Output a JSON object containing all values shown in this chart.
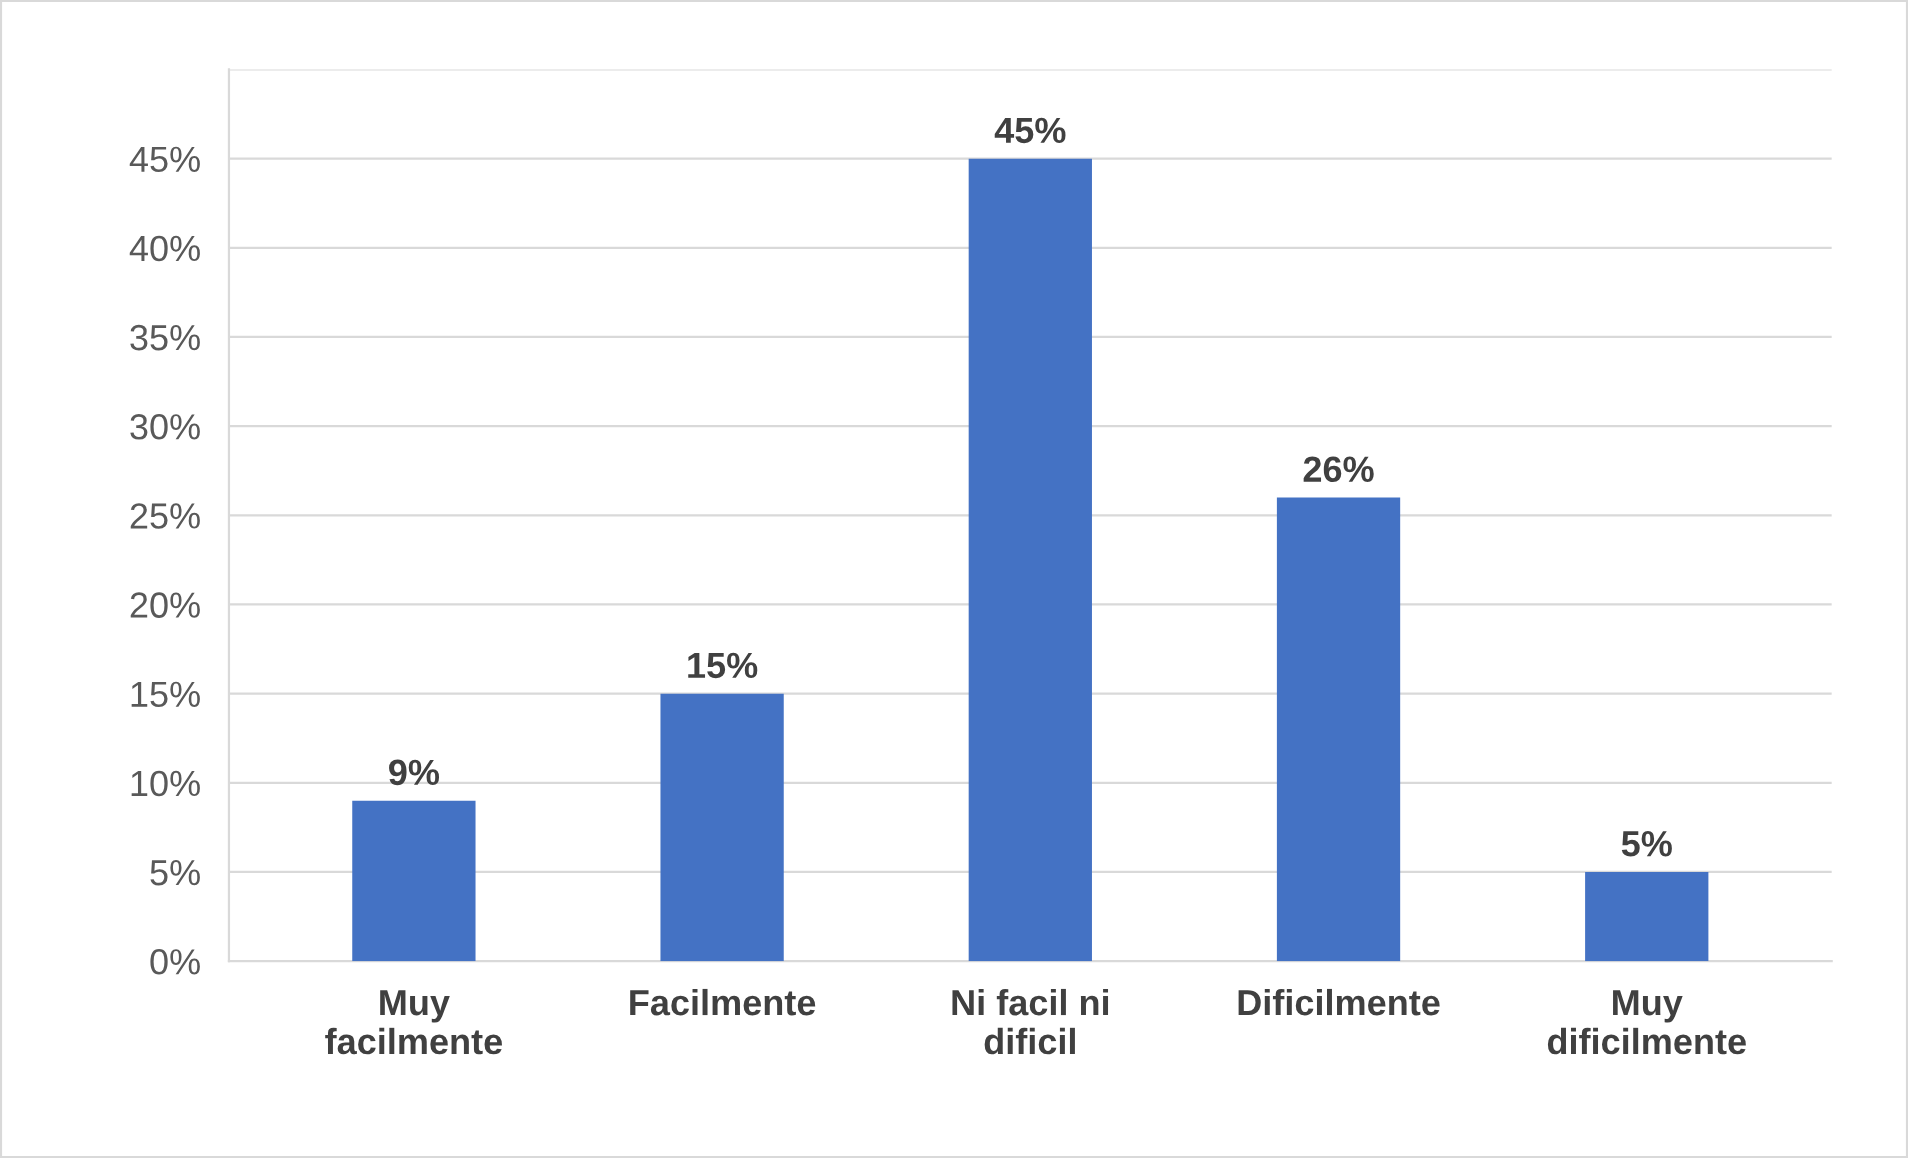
{
  "chart_data": {
    "type": "bar",
    "categories": [
      "Muy\nfacilmente",
      "Facilmente",
      "Ni facil ni\ndificil",
      "Dificilmente",
      "Muy\ndificilmente"
    ],
    "values": [
      9,
      15,
      45,
      26,
      5
    ],
    "value_labels": [
      "9%",
      "15%",
      "45%",
      "26%",
      "5%"
    ],
    "color": "#4472c4",
    "ylim": [
      0,
      50
    ],
    "yticks": [
      {
        "value": 0,
        "label": "0%"
      },
      {
        "value": 5,
        "label": "5%"
      },
      {
        "value": 10,
        "label": "10%"
      },
      {
        "value": 15,
        "label": "15%"
      },
      {
        "value": 20,
        "label": "20%"
      },
      {
        "value": 25,
        "label": "25%"
      },
      {
        "value": 30,
        "label": "30%"
      },
      {
        "value": 35,
        "label": "35%"
      },
      {
        "value": 40,
        "label": "40%"
      },
      {
        "value": 45,
        "label": "45%"
      },
      {
        "value": 50,
        "label": null
      }
    ],
    "grid": "y"
  }
}
